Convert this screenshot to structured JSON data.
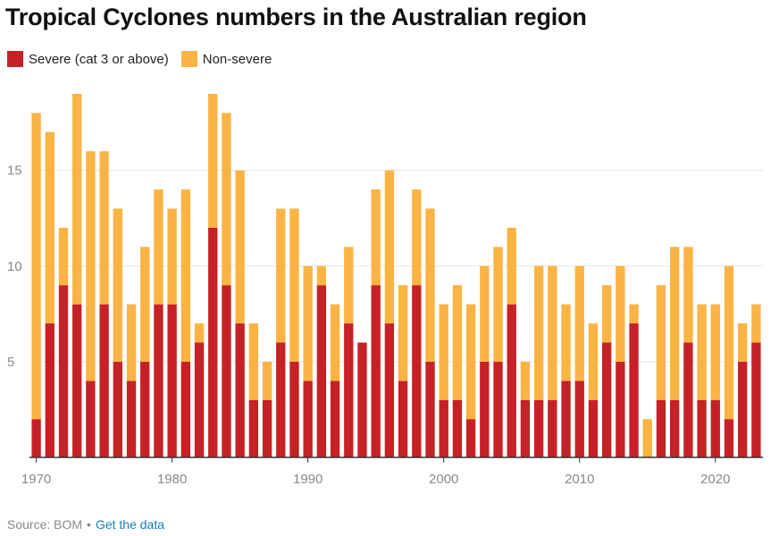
{
  "title": "Tropical Cyclones numbers in the Australian region",
  "colors": {
    "severe": "#c62126",
    "nonsevere": "#fbb443",
    "grid": "#e6e6e6",
    "axis": "#333333",
    "tick_text": "#888888"
  },
  "legend": {
    "severe_label": "Severe (cat 3 or above)",
    "nonsevere_label": "Non-severe"
  },
  "footer": {
    "source": "Source: BOM",
    "separator": "•",
    "link": "Get the data"
  },
  "chart_data": {
    "type": "bar",
    "stacked": true,
    "title": "Tropical Cyclones numbers in the Australian region",
    "xlabel": "",
    "ylabel": "",
    "ylim": [
      0,
      19
    ],
    "yticks": [
      5,
      10,
      15
    ],
    "xticks": [
      1970,
      1980,
      1990,
      2000,
      2010,
      2020
    ],
    "grid": true,
    "legend_position": "top-left",
    "categories": [
      1970,
      1971,
      1972,
      1973,
      1974,
      1975,
      1976,
      1977,
      1978,
      1979,
      1980,
      1981,
      1982,
      1983,
      1984,
      1985,
      1986,
      1987,
      1988,
      1989,
      1990,
      1991,
      1992,
      1993,
      1994,
      1995,
      1996,
      1997,
      1998,
      1999,
      2000,
      2001,
      2002,
      2003,
      2004,
      2005,
      2006,
      2007,
      2008,
      2009,
      2010,
      2011,
      2012,
      2013,
      2014,
      2015,
      2016,
      2017,
      2018,
      2019,
      2020,
      2021,
      2022,
      2023
    ],
    "series": [
      {
        "name": "Severe (cat 3 or above)",
        "values": [
          2,
          7,
          9,
          8,
          4,
          8,
          5,
          4,
          5,
          8,
          8,
          5,
          6,
          12,
          9,
          7,
          3,
          3,
          6,
          5,
          4,
          9,
          4,
          7,
          6,
          9,
          7,
          4,
          9,
          5,
          3,
          3,
          2,
          5,
          5,
          8,
          3,
          3,
          3,
          4,
          4,
          3,
          6,
          5,
          7,
          0,
          3,
          3,
          6,
          3,
          3,
          2,
          5,
          6
        ]
      },
      {
        "name": "Non-severe",
        "values": [
          16,
          10,
          3,
          11,
          12,
          8,
          8,
          4,
          6,
          6,
          5,
          9,
          1,
          7,
          9,
          8,
          4,
          2,
          7,
          8,
          6,
          1,
          4,
          4,
          0,
          5,
          8,
          5,
          5,
          8,
          5,
          6,
          6,
          5,
          6,
          4,
          2,
          7,
          7,
          4,
          6,
          4,
          3,
          5,
          1,
          2,
          6,
          8,
          5,
          5,
          5,
          8,
          2,
          2
        ]
      }
    ]
  }
}
